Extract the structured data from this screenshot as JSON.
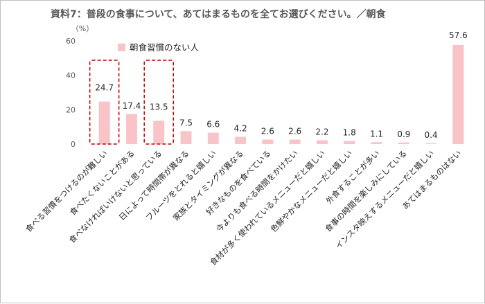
{
  "chart_data": {
    "type": "bar",
    "title": "資料7：普段の食事について、あてはまるものを全てお選びください。／朝食",
    "unit_label": "（%）",
    "y_ticks": [
      0,
      20,
      40,
      60
    ],
    "ylim": [
      0,
      60
    ],
    "grid": false,
    "legend_position": "top-left",
    "series": [
      {
        "name": "朝食習慣のない人",
        "color": "#f8c4c8",
        "values": [
          24.7,
          17.4,
          13.5,
          7.5,
          6.6,
          4.2,
          2.6,
          2.6,
          2.2,
          1.8,
          1.1,
          0.9,
          0.4,
          57.6
        ]
      }
    ],
    "categories": [
      "食べる習慣をつけるのが難しい",
      "食べたくないことがある",
      "食べなければいけないと思っている",
      "日によって時間帯が異なる",
      "フルーツをとれると嬉しい",
      "家族とタイミングが異なる",
      "好きなものを食べている",
      "今よりも食べる時間をかけたい",
      "食材が多く使われているメニューだと嬉しい",
      "色鮮やかなメニューだと嬉しい",
      "外食することが多い",
      "食事の時間を楽しみにしている",
      "インスタ映えするメニューだと嬉しい",
      "あてはまるものはない"
    ],
    "highlighted_categories": [
      0,
      2
    ],
    "highlight_color": "#c00000"
  }
}
